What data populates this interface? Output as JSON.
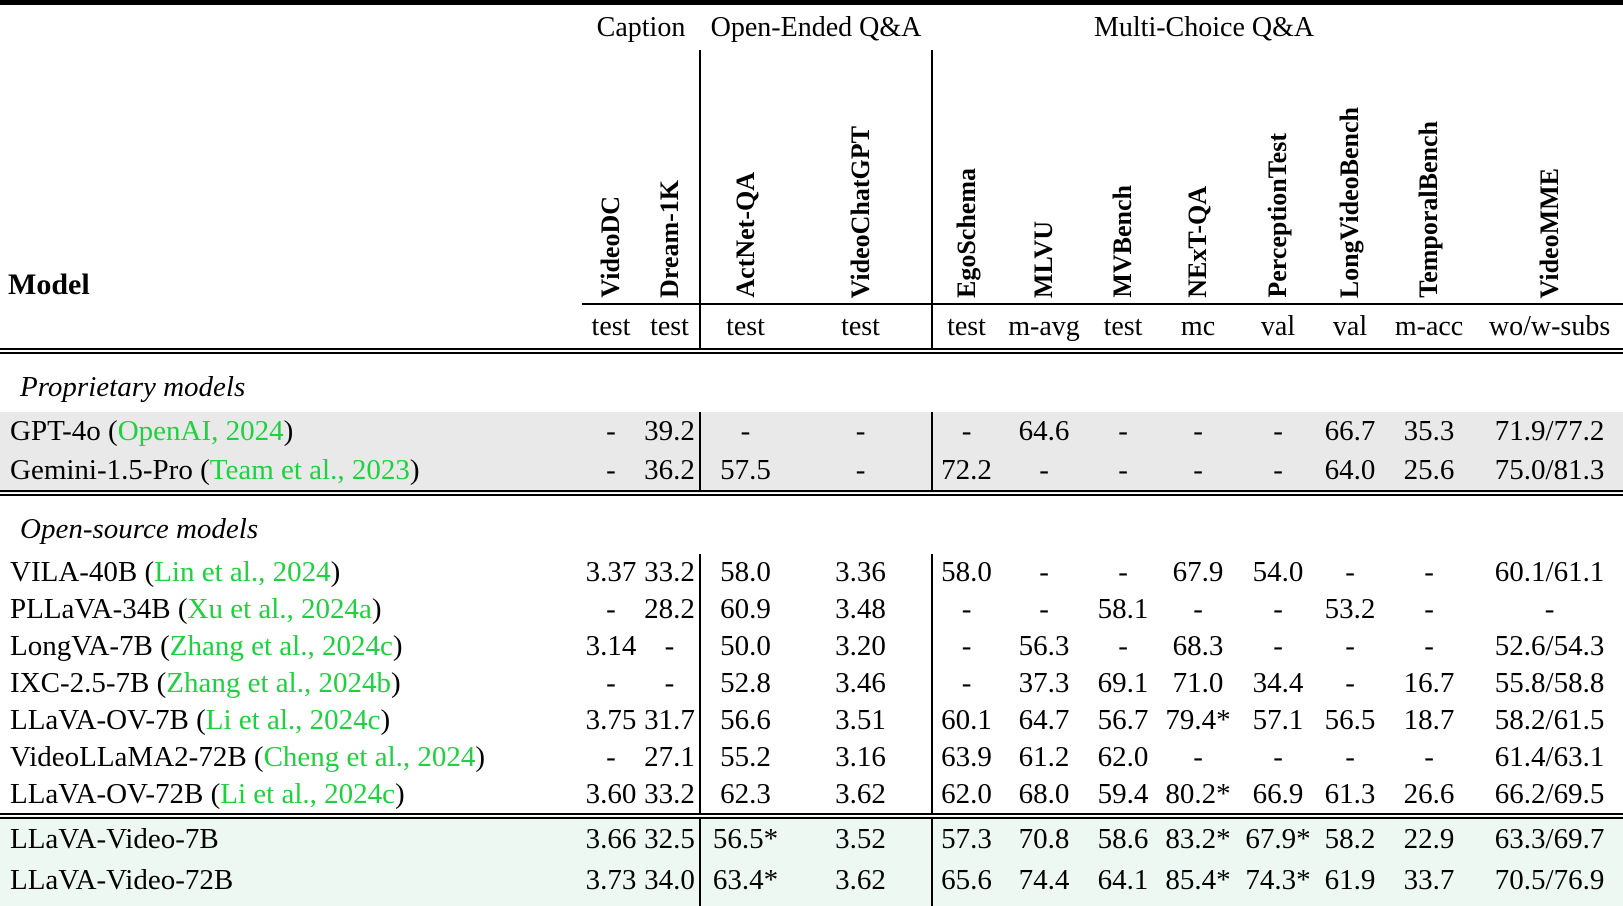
{
  "table": {
    "model_header": "Model",
    "groups": [
      {
        "label": "Caption"
      },
      {
        "label": "Open-Ended Q&A"
      },
      {
        "label": "Multi-Choice Q&A"
      }
    ],
    "columns": [
      {
        "name": "VideoDC",
        "split": "test"
      },
      {
        "name": "Dream-1K",
        "split": "test"
      },
      {
        "name": "ActNet-QA",
        "split": "test"
      },
      {
        "name": "VideoChatGPT",
        "split": "test"
      },
      {
        "name": "EgoSchema",
        "split": "test"
      },
      {
        "name": "MLVU",
        "split": "m-avg"
      },
      {
        "name": "MVBench",
        "split": "test"
      },
      {
        "name": "NExT-QA",
        "split": "mc"
      },
      {
        "name": "PerceptionTest",
        "split": "val"
      },
      {
        "name": "LongVideoBench",
        "split": "val"
      },
      {
        "name": "TemporalBench",
        "split": "m-acc"
      },
      {
        "name": "VideoMME",
        "split": "wo/w-subs"
      }
    ],
    "sections": [
      {
        "label": "Proprietary models",
        "highlight": "gray",
        "rows": [
          {
            "model": "GPT-4o",
            "cite": "OpenAI, 2024",
            "values": [
              "-",
              "39.2",
              "-",
              "-",
              "-",
              "64.6",
              "-",
              "-",
              "-",
              "66.7",
              "35.3",
              "71.9/77.2"
            ]
          },
          {
            "model": "Gemini-1.5-Pro",
            "cite": "Team et al., 2023",
            "values": [
              "-",
              "36.2",
              "57.5",
              "-",
              "72.2",
              "-",
              "-",
              "-",
              "-",
              "64.0",
              "25.6",
              "75.0/81.3"
            ]
          }
        ]
      },
      {
        "label": "Open-source models",
        "highlight": null,
        "rows": [
          {
            "model": "VILA-40B",
            "cite": "Lin et al., 2024",
            "values": [
              "3.37",
              "33.2",
              "58.0",
              "3.36",
              "58.0",
              "-",
              "-",
              "67.9",
              "54.0",
              "-",
              "-",
              "60.1/61.1"
            ]
          },
          {
            "model": "PLLaVA-34B",
            "cite": "Xu et al., 2024a",
            "values": [
              "-",
              "28.2",
              "60.9",
              "3.48",
              "-",
              "-",
              "58.1",
              "-",
              "-",
              "53.2",
              "-",
              "-"
            ]
          },
          {
            "model": "LongVA-7B",
            "cite": "Zhang et al., 2024c",
            "values": [
              "3.14",
              "-",
              "50.0",
              "3.20",
              "-",
              "56.3",
              "-",
              "68.3",
              "-",
              "-",
              "-",
              "52.6/54.3"
            ]
          },
          {
            "model": "IXC-2.5-7B",
            "cite": "Zhang et al., 2024b",
            "values": [
              "-",
              "-",
              "52.8",
              "3.46",
              "-",
              "37.3",
              "69.1",
              "71.0",
              "34.4",
              "-",
              "16.7",
              "55.8/58.8"
            ]
          },
          {
            "model": "LLaVA-OV-7B",
            "cite": "Li et al., 2024c",
            "values": [
              "3.75",
              "31.7",
              "56.6",
              "3.51",
              "60.1",
              "64.7",
              "56.7",
              "79.4*",
              "57.1",
              "56.5",
              "18.7",
              "58.2/61.5"
            ]
          },
          {
            "model": "VideoLLaMA2-72B",
            "cite": "Cheng et al., 2024",
            "values": [
              "-",
              "27.1",
              "55.2",
              "3.16",
              "63.9",
              "61.2",
              "62.0",
              "-",
              "-",
              "-",
              "-",
              "61.4/63.1"
            ]
          },
          {
            "model": "LLaVA-OV-72B",
            "cite": "Li et al., 2024c",
            "values": [
              "3.60",
              "33.2",
              "62.3",
              "3.62",
              "62.0",
              "68.0",
              "59.4",
              "80.2*",
              "66.9",
              "61.3",
              "26.6",
              "66.2/69.5"
            ]
          }
        ]
      },
      {
        "label": null,
        "highlight": "mint",
        "rows": [
          {
            "model": "LLaVA-Video-7B",
            "cite": null,
            "values": [
              "3.66",
              "32.5",
              "56.5*",
              "3.52",
              "57.3",
              "70.8",
              "58.6",
              "83.2*",
              "67.9*",
              "58.2",
              "22.9",
              "63.3/69.7"
            ]
          },
          {
            "model": "LLaVA-Video-72B",
            "cite": null,
            "values": [
              "3.73",
              "34.0",
              "63.4*",
              "3.62",
              "65.6",
              "74.4",
              "64.1",
              "85.4*",
              "74.3*",
              "61.9",
              "33.7",
              "70.5/76.9"
            ]
          }
        ]
      }
    ],
    "colors": {
      "citation_green": "#1fd13f",
      "gray_row_bg": "#e9e9e9",
      "mint_row_bg": "#eef8f2",
      "rule_black": "#000000"
    }
  }
}
